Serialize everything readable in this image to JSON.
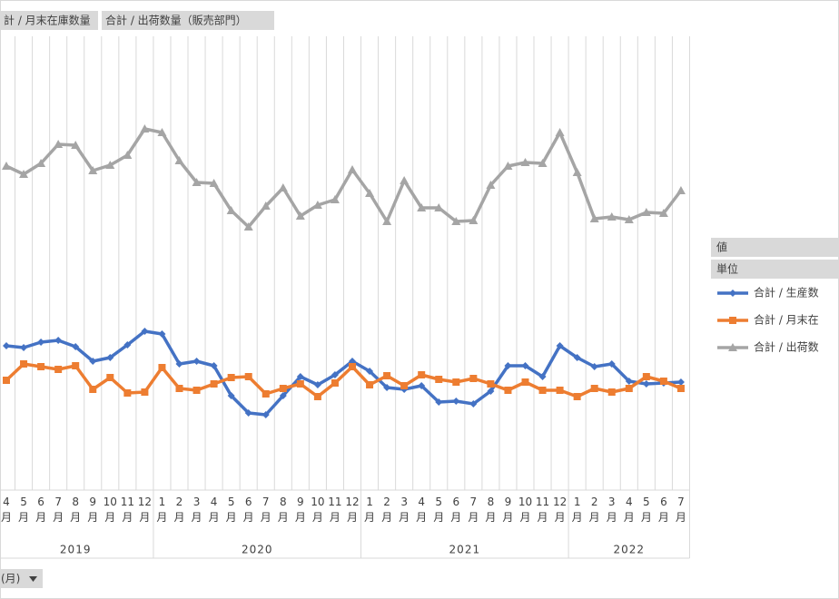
{
  "field_buttons": [
    "計 / 月末在庫数量",
    "合計 / 出荷数量（販売部門）"
  ],
  "legend_headers": [
    "値",
    "単位"
  ],
  "axis_field_button": "(月)",
  "chart_data": {
    "type": "line",
    "categories": [
      "4\n月",
      "5\n月",
      "6\n月",
      "7\n月",
      "8\n月",
      "9\n月",
      "10\n月",
      "11\n月",
      "12\n月",
      "1\n月",
      "2\n月",
      "3\n月",
      "4\n月",
      "5\n月",
      "6\n月",
      "7\n月",
      "8\n月",
      "9\n月",
      "10\n月",
      "11\n月",
      "12\n月",
      "1\n月",
      "2\n月",
      "3\n月",
      "4\n月",
      "5\n月",
      "6\n月",
      "7\n月",
      "8\n月",
      "9\n月",
      "10\n月",
      "11\n月",
      "12\n月",
      "1\n月",
      "2\n月",
      "3\n月",
      "4\n月",
      "5\n月",
      "6\n月",
      "7\n月"
    ],
    "year_groups": [
      {
        "label": "2019",
        "count": 9
      },
      {
        "label": "2020",
        "count": 12
      },
      {
        "label": "2021",
        "count": 12
      },
      {
        "label": "2022",
        "count": 7
      }
    ],
    "ylim": [
      0,
      500
    ],
    "grid": true,
    "series": [
      {
        "name": "合計 / 生産数",
        "color": "#4472c4",
        "marker": "diamond",
        "values": [
          159,
          157,
          163,
          165,
          158,
          142,
          146,
          160,
          175,
          172,
          139,
          142,
          137,
          104,
          85,
          83,
          104,
          125,
          116,
          127,
          142,
          131,
          113,
          111,
          115,
          97,
          98,
          95,
          109,
          137,
          137,
          125,
          159,
          146,
          136,
          139,
          120,
          117,
          118,
          119
        ]
      },
      {
        "name": "合計 / 月末在",
        "color": "#ed7d31",
        "marker": "square",
        "values": [
          121,
          139,
          136,
          133,
          137,
          111,
          124,
          107,
          108,
          135,
          112,
          110,
          117,
          124,
          125,
          106,
          112,
          117,
          103,
          118,
          136,
          116,
          126,
          115,
          127,
          122,
          119,
          123,
          117,
          110,
          119,
          110,
          110,
          103,
          112,
          108,
          112,
          125,
          120,
          112
        ]
      },
      {
        "name": "合計 / 出荷数",
        "color": "#a5a5a5",
        "marker": "triangle",
        "values": [
          357,
          348,
          360,
          381,
          380,
          352,
          358,
          369,
          398,
          394,
          363,
          339,
          338,
          308,
          290,
          313,
          333,
          302,
          314,
          320,
          353,
          327,
          296,
          341,
          311,
          311,
          296,
          297,
          336,
          357,
          361,
          360,
          394,
          350,
          299,
          301,
          298,
          306,
          305,
          330
        ]
      }
    ]
  }
}
